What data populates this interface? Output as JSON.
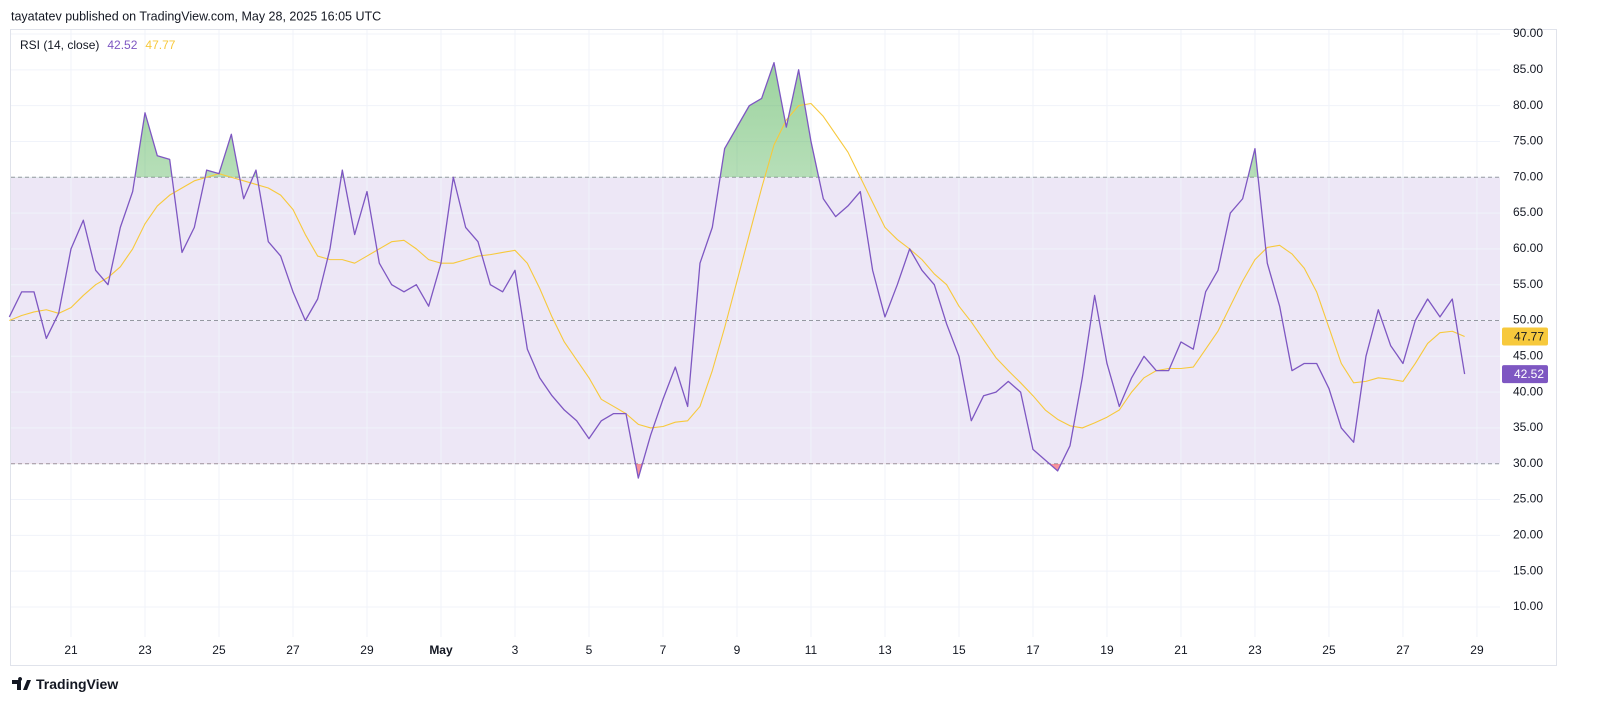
{
  "header": {
    "text": "tayatatev published on TradingView.com, May 28, 2025 16:05 UTC"
  },
  "footer": {
    "brand": "TradingView"
  },
  "chart_data": {
    "type": "line",
    "legend_title": "RSI (14, close)",
    "categories": [
      null,
      null,
      null,
      null,
      null,
      "21",
      null,
      null,
      null,
      null,
      null,
      "23",
      null,
      null,
      null,
      null,
      null,
      "25",
      null,
      null,
      null,
      null,
      null,
      "27",
      null,
      null,
      null,
      null,
      null,
      "29",
      null,
      null,
      null,
      null,
      null,
      "May",
      null,
      null,
      null,
      null,
      null,
      "3",
      null,
      null,
      null,
      null,
      null,
      "5",
      null,
      null,
      null,
      null,
      null,
      "7",
      null,
      null,
      null,
      null,
      null,
      "9",
      null,
      null,
      null,
      null,
      null,
      "11",
      null,
      null,
      null,
      null,
      null,
      "13",
      null,
      null,
      null,
      null,
      null,
      "15",
      null,
      null,
      null,
      null,
      null,
      "17",
      null,
      null,
      null,
      null,
      null,
      "19",
      null,
      null,
      null,
      null,
      null,
      "21",
      null,
      null,
      null,
      null,
      null,
      "23",
      null,
      null,
      null,
      null,
      null,
      "25",
      null,
      null,
      null,
      null,
      null,
      "27",
      null,
      null,
      null,
      null,
      null,
      "29"
    ],
    "series": [
      {
        "color": "#7e57c2",
        "values": [
          50.5,
          54,
          54,
          47.5,
          51,
          60,
          64,
          57,
          55,
          63,
          68,
          79,
          73,
          72.5,
          59.5,
          63,
          71,
          70.5,
          76,
          67,
          71,
          61,
          59,
          54,
          50,
          53,
          60,
          71,
          62,
          68,
          58,
          55,
          54,
          55,
          52,
          58,
          70,
          63,
          61,
          55,
          54,
          57,
          46,
          42,
          39.5,
          37.5,
          36,
          33.5,
          36,
          37,
          37,
          28,
          34,
          39,
          43.5,
          38,
          58,
          63,
          74,
          77,
          80,
          81,
          86,
          77,
          85,
          75,
          67,
          64.5,
          66,
          68,
          57,
          50.5,
          55,
          60,
          57,
          55,
          49.5,
          45,
          36,
          39.5,
          40,
          41.5,
          40,
          32,
          30.5,
          29,
          32.5,
          42,
          53.5,
          44,
          38,
          42,
          45,
          43,
          43,
          47,
          46,
          54,
          57,
          65,
          67,
          74,
          58,
          52,
          43,
          44,
          44,
          40.5,
          35,
          33,
          45,
          51.5,
          46.5,
          44,
          50,
          53,
          50.5,
          53,
          42.52,
          null
        ]
      },
      {
        "color": "#f7c93c",
        "values": [
          50,
          50.7,
          51.2,
          51.5,
          51,
          51.8,
          53.5,
          55,
          56,
          57.5,
          60,
          63.5,
          66,
          67.5,
          68.5,
          69.5,
          70,
          70.5,
          70,
          69.5,
          69,
          68.5,
          67.5,
          65.5,
          62,
          59,
          58.5,
          58.5,
          58,
          59,
          60,
          61,
          61.2,
          60,
          58.5,
          58,
          58,
          58.5,
          59,
          59.2,
          59.5,
          59.8,
          58,
          54.5,
          50.5,
          47,
          44.5,
          42,
          39,
          38,
          37,
          35.5,
          35,
          35.2,
          35.8,
          36,
          38,
          43,
          49,
          55.5,
          62,
          68.5,
          74.5,
          78,
          80,
          80.3,
          78.5,
          76,
          73.5,
          70,
          66.5,
          63,
          61.3,
          60,
          58.5,
          56.5,
          55,
          52,
          49.8,
          47.3,
          44.8,
          43,
          41.3,
          39.5,
          37.5,
          36.2,
          35.3,
          35,
          35.7,
          36.5,
          37.5,
          40,
          42,
          43,
          43.3,
          43.3,
          43.5,
          46,
          48.5,
          52,
          55.5,
          58.5,
          60.2,
          60.5,
          59.3,
          57.3,
          54,
          49,
          44,
          41.3,
          41.5,
          42,
          41.8,
          41.5,
          44,
          46.8,
          48.3,
          48.5,
          47.77,
          null
        ]
      }
    ],
    "bands": {
      "upper": 70,
      "middle": 50,
      "lower": 30,
      "fill": "#ede7f6"
    },
    "overbought_color": "#4caf50",
    "oversold_color": "#f23645",
    "ylim": [
      5.81,
      90.56
    ],
    "yticks": [
      {
        "value": 10,
        "label": "10.00"
      },
      {
        "value": 15,
        "label": "15.00"
      },
      {
        "value": 20,
        "label": "20.00"
      },
      {
        "value": 25,
        "label": "25.00"
      },
      {
        "value": 30,
        "label": "30.00"
      },
      {
        "value": 35,
        "label": "35.00"
      },
      {
        "value": 40,
        "label": "40.00"
      },
      {
        "value": 45,
        "label": "45.00"
      },
      {
        "value": 50,
        "label": "50.00"
      },
      {
        "value": 55,
        "label": "55.00"
      },
      {
        "value": 60,
        "label": "60.00"
      },
      {
        "value": 65,
        "label": "65.00"
      },
      {
        "value": 70,
        "label": "70.00"
      },
      {
        "value": 75,
        "label": "75.00"
      },
      {
        "value": 80,
        "label": "80.00"
      },
      {
        "value": 85,
        "label": "85.00"
      },
      {
        "value": 90,
        "label": "90.00"
      }
    ],
    "grid": true
  }
}
